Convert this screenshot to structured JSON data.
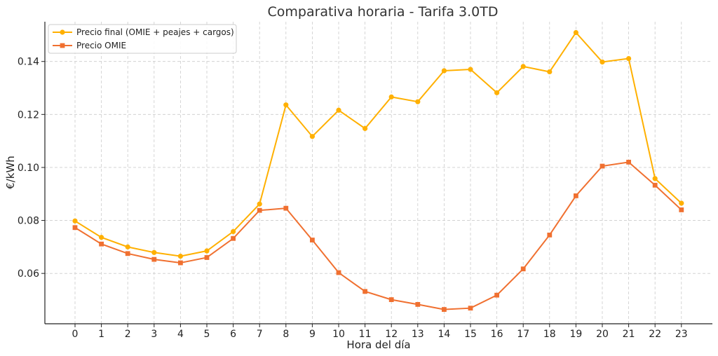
{
  "chart_data": {
    "type": "line",
    "title": "Comparativa horaria - Tarifa 3.0TD",
    "xlabel": "Hora del día",
    "ylabel": "€/kWh",
    "categories": [
      "0",
      "1",
      "2",
      "3",
      "4",
      "5",
      "6",
      "7",
      "8",
      "9",
      "10",
      "11",
      "12",
      "13",
      "14",
      "15",
      "16",
      "17",
      "18",
      "19",
      "20",
      "21",
      "22",
      "23"
    ],
    "yticks": [
      "0.06",
      "0.08",
      "0.10",
      "0.12",
      "0.14"
    ],
    "ytick_values": [
      0.06,
      0.08,
      0.1,
      0.12,
      0.14
    ],
    "ylim": [
      0.041,
      0.155
    ],
    "grid": true,
    "legend_position": "top-left",
    "series": [
      {
        "name": "Precio final (OMIE + peajes + cargos)",
        "color": "#FFB000",
        "marker": "circle",
        "values": [
          0.0798,
          0.0736,
          0.07,
          0.0679,
          0.0665,
          0.0685,
          0.0758,
          0.0862,
          0.1236,
          0.1117,
          0.1216,
          0.1147,
          0.1266,
          0.1248,
          0.1365,
          0.137,
          0.1282,
          0.1381,
          0.1361,
          0.1509,
          0.1398,
          0.1411,
          0.0958,
          0.0865
        ]
      },
      {
        "name": "Precio OMIE",
        "color": "#F07030",
        "marker": "square",
        "values": [
          0.0773,
          0.0711,
          0.0675,
          0.0653,
          0.064,
          0.066,
          0.0732,
          0.0838,
          0.0846,
          0.0726,
          0.0603,
          0.0532,
          0.0501,
          0.0483,
          0.0464,
          0.0469,
          0.0518,
          0.0617,
          0.0745,
          0.0893,
          0.1005,
          0.102,
          0.0933,
          0.084
        ]
      }
    ]
  }
}
